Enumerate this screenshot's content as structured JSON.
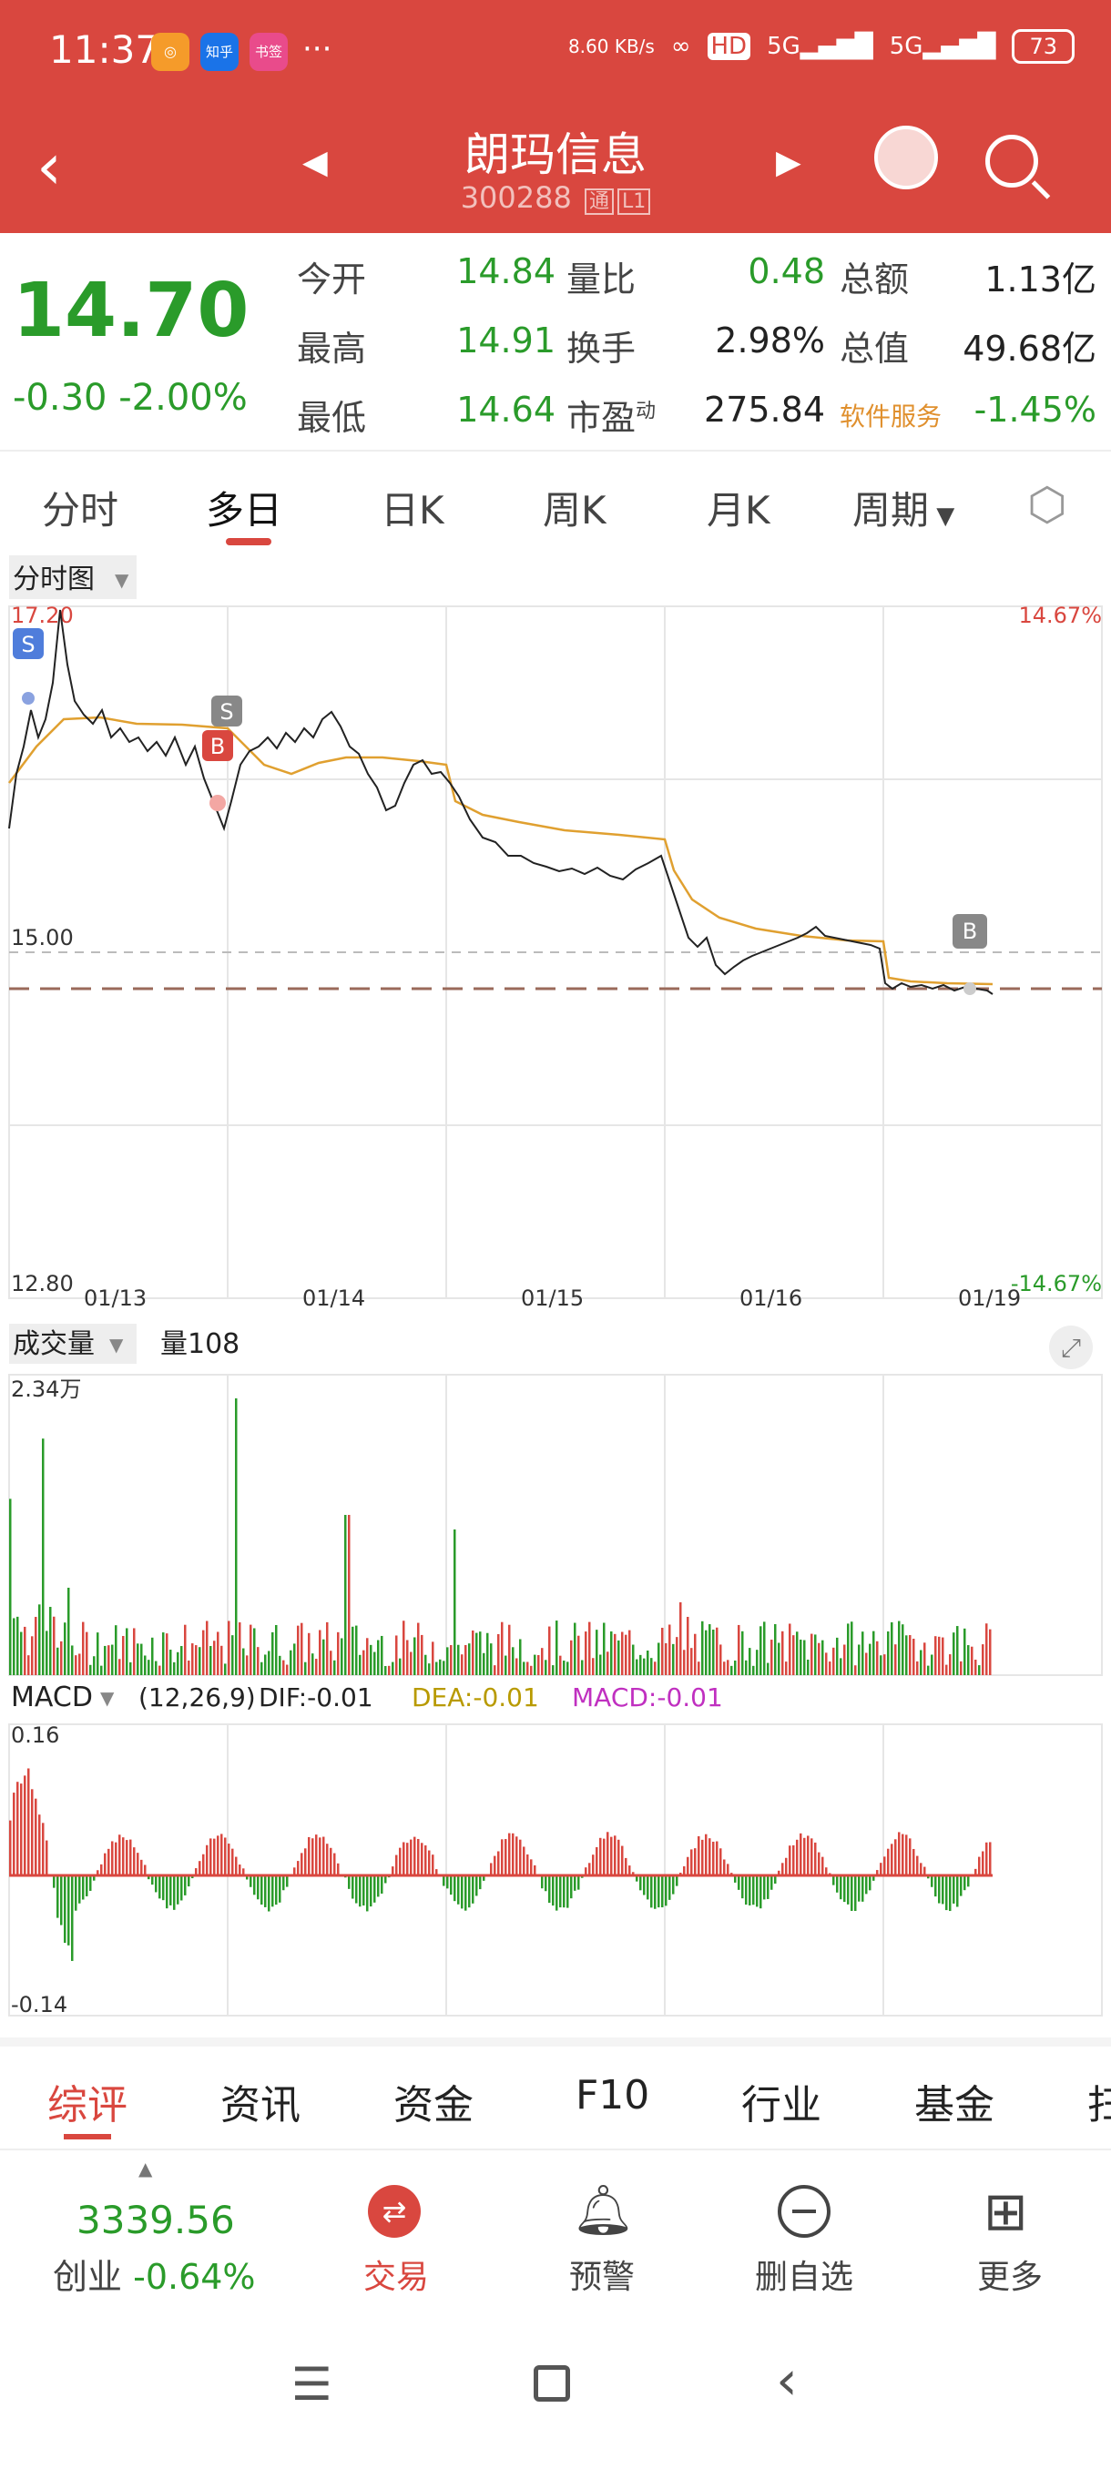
{
  "status": {
    "time": "11:37",
    "net": "8.60 KB/s",
    "hd": "HD",
    "sig1": "5G",
    "sig2": "5G",
    "battery": "73",
    "app1": "◎",
    "app2": "知乎",
    "app3": "书签"
  },
  "header": {
    "title": "朗玛信息",
    "code": "300288",
    "tag1": "通",
    "tag2": "L1"
  },
  "quote": {
    "price": "14.70",
    "change": "-0.30",
    "pct": "-2.00%",
    "rows": [
      {
        "l1": "今开",
        "v1": "14.84",
        "l2": "量比",
        "v2": "0.48",
        "l3": "总额",
        "v3": "1.13亿"
      },
      {
        "l1": "最高",
        "v1": "14.91",
        "l2": "换手",
        "v2": "2.98%",
        "l3": "总值",
        "v3": "49.68亿"
      },
      {
        "l1": "最低",
        "v1": "14.64",
        "l2": "市盈",
        "sup": "动",
        "v2": "275.84",
        "l3": "软件服务",
        "v3": "-1.45%"
      }
    ]
  },
  "tabs": [
    "分时",
    "多日",
    "日K",
    "周K",
    "月K",
    "周期"
  ],
  "chart": {
    "selector": "分时图",
    "ymax": "17.20",
    "ymid": "15.00",
    "ymin": "12.80",
    "pmax": "14.67%",
    "pmin": "-14.67%",
    "dates": [
      "01/13",
      "01/14",
      "01/15",
      "01/16",
      "01/19"
    ],
    "s": "S",
    "b": "B"
  },
  "volume": {
    "selector": "成交量",
    "label": "量108",
    "max": "2.34万"
  },
  "macd": {
    "selector": "MACD",
    "params": "(12,26,9)",
    "dif": "DIF:-0.01",
    "dea": "DEA:-0.01",
    "macd": "MACD:-0.01",
    "max": "0.16",
    "min": "-0.14"
  },
  "bottom_tabs": [
    "综评",
    "资讯",
    "资金",
    "F10",
    "行业",
    "基金",
    "扫"
  ],
  "nav": {
    "index_value": "3339.56",
    "index_name": "创业",
    "index_chg": "-0.64%",
    "trade": "交易",
    "alert": "预警",
    "remove": "删自选",
    "more": "更多"
  },
  "colors": {
    "red": "#d9473f",
    "green": "#2a9b2a",
    "avg": "#e0a030"
  }
}
